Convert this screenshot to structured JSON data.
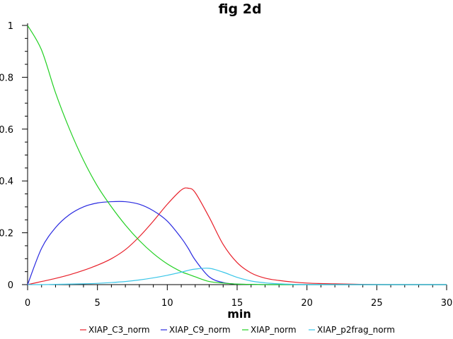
{
  "chart_data": {
    "type": "line",
    "title": "fig 2d",
    "xlabel": "min",
    "ylabel": "",
    "xlim": [
      0,
      30
    ],
    "ylim": [
      0,
      1
    ],
    "xticks": [
      "0",
      "5",
      "10",
      "15",
      "20",
      "25",
      "30"
    ],
    "yticks": [
      "0",
      "0.2",
      "0.4",
      "0.6",
      "0.8",
      "1"
    ],
    "grid": false,
    "legend_position": "bottom",
    "x": [
      0,
      1,
      2,
      3,
      4,
      5,
      6,
      7,
      8,
      9,
      10,
      11,
      11.5,
      12,
      13,
      14,
      15,
      16,
      17,
      18,
      19,
      20,
      21,
      22,
      24,
      26,
      28,
      30
    ],
    "series": [
      {
        "name": "XIAP_C3_norm",
        "color": "#e8202a",
        "values": [
          0,
          0.012,
          0.024,
          0.038,
          0.055,
          0.075,
          0.1,
          0.135,
          0.185,
          0.245,
          0.31,
          0.365,
          0.372,
          0.355,
          0.26,
          0.155,
          0.085,
          0.045,
          0.025,
          0.016,
          0.01,
          0.006,
          0.004,
          0.003,
          0.001,
          0,
          0,
          0
        ]
      },
      {
        "name": "XIAP_C9_norm",
        "color": "#2a2ae0",
        "values": [
          0,
          0.14,
          0.22,
          0.27,
          0.3,
          0.315,
          0.32,
          0.32,
          0.31,
          0.285,
          0.245,
          0.18,
          0.14,
          0.095,
          0.03,
          0.008,
          0.002,
          0.001,
          0,
          0,
          0,
          0,
          0,
          0,
          0,
          0,
          0,
          0
        ]
      },
      {
        "name": "XIAP_norm",
        "color": "#22d022",
        "values": [
          1,
          0.905,
          0.74,
          0.6,
          0.48,
          0.38,
          0.3,
          0.23,
          0.17,
          0.12,
          0.08,
          0.05,
          0.04,
          0.03,
          0.012,
          0.006,
          0.002,
          0.001,
          0,
          0,
          0,
          0,
          0,
          0,
          0,
          0,
          0,
          0
        ]
      },
      {
        "name": "XIAP_p2frag_norm",
        "color": "#3ac6e8",
        "values": [
          0,
          0,
          0.001,
          0.002,
          0.003,
          0.005,
          0.008,
          0.012,
          0.018,
          0.026,
          0.036,
          0.048,
          0.055,
          0.06,
          0.063,
          0.048,
          0.028,
          0.014,
          0.007,
          0.003,
          0.001,
          0,
          0,
          0,
          0,
          0,
          0,
          0
        ]
      }
    ]
  }
}
